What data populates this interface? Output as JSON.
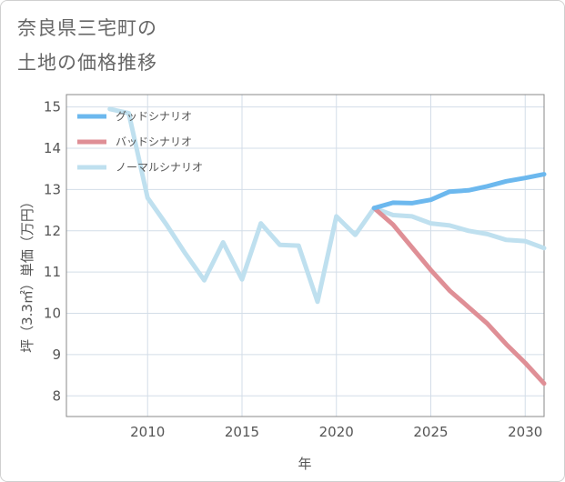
{
  "title": {
    "line1": "奈良県三宅町の",
    "line2": "土地の価格推移"
  },
  "chart_data": {
    "type": "line",
    "xlabel": "年",
    "ylabel": "坪（3.3㎡）単価（万円）",
    "xlim": [
      2005.7,
      2031
    ],
    "ylim": [
      7.5,
      15.3
    ],
    "xticks": [
      2010,
      2015,
      2020,
      2025,
      2030
    ],
    "yticks": [
      8,
      9,
      10,
      11,
      12,
      13,
      14,
      15
    ],
    "grid": true,
    "legend_position": "top-left",
    "series": [
      {
        "name": "グッドシナリオ",
        "color": "#6cb8ee",
        "x": [
          2022,
          2023,
          2024,
          2025,
          2026,
          2027,
          2028,
          2029,
          2030,
          2031
        ],
        "y": [
          12.55,
          12.68,
          12.67,
          12.75,
          12.95,
          12.98,
          13.08,
          13.2,
          13.28,
          13.37
        ]
      },
      {
        "name": "バッドシナリオ",
        "color": "#df8f96",
        "x": [
          2022,
          2023,
          2024,
          2025,
          2026,
          2027,
          2028,
          2029,
          2030,
          2031
        ],
        "y": [
          12.55,
          12.15,
          11.6,
          11.05,
          10.55,
          10.15,
          9.75,
          9.25,
          8.8,
          8.3
        ]
      },
      {
        "name": "ノーマルシナリオ",
        "color": "#bfe0ef",
        "x": [
          2008,
          2009,
          2010,
          2011,
          2012,
          2013,
          2014,
          2015,
          2016,
          2017,
          2018,
          2019,
          2020,
          2021,
          2022,
          2023,
          2024,
          2025,
          2026,
          2027,
          2028,
          2029,
          2030,
          2031
        ],
        "y": [
          14.95,
          14.85,
          12.8,
          12.15,
          11.45,
          10.8,
          11.72,
          10.82,
          12.18,
          11.66,
          11.64,
          10.28,
          12.35,
          11.9,
          12.55,
          12.38,
          12.35,
          12.18,
          12.13,
          12.0,
          11.92,
          11.78,
          11.75,
          11.58
        ]
      }
    ]
  }
}
